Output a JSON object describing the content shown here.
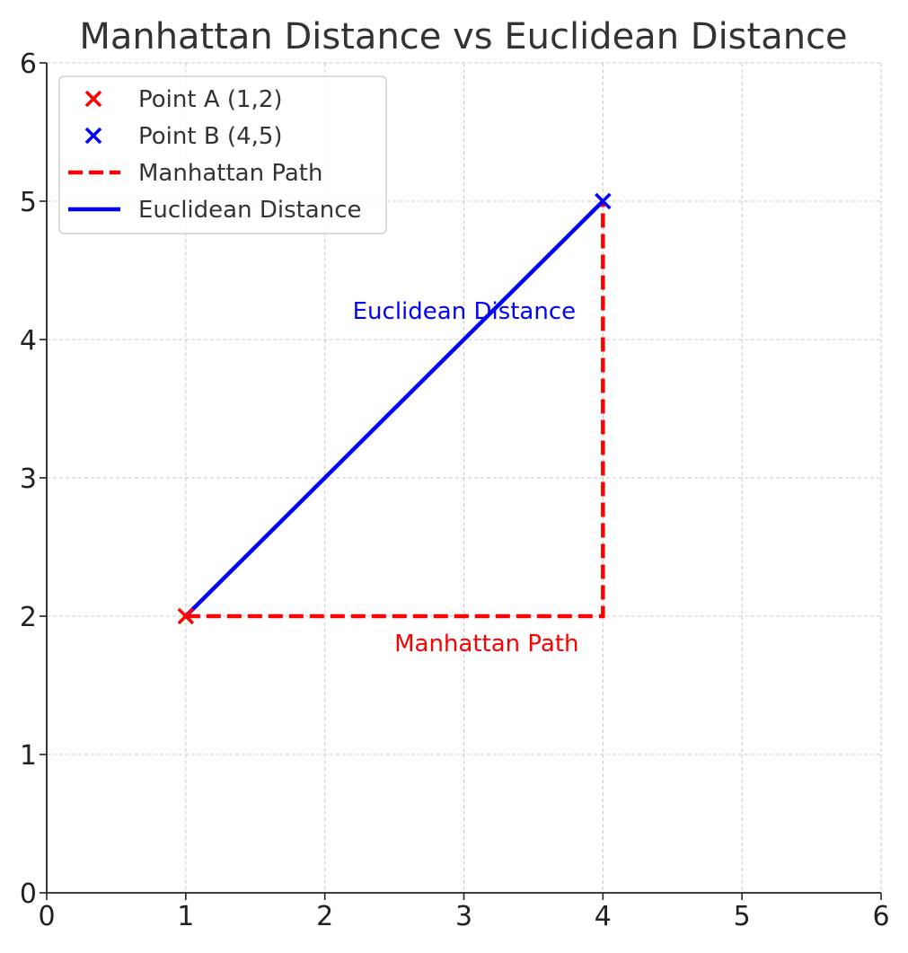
{
  "chart_data": {
    "type": "line",
    "title": "Manhattan Distance vs Euclidean Distance",
    "xlabel": "",
    "ylabel": "",
    "xlim": [
      0,
      6
    ],
    "ylim": [
      0,
      6
    ],
    "xticks": [
      "0",
      "1",
      "2",
      "3",
      "4",
      "5",
      "6"
    ],
    "yticks": [
      "0",
      "1",
      "2",
      "3",
      "4",
      "5",
      "6"
    ],
    "grid": true,
    "legend_position": "top-left",
    "points": [
      {
        "name": "Point A (1,2)",
        "x": 1,
        "y": 2,
        "color": "#ff0000",
        "marker": "x"
      },
      {
        "name": "Point B (4,5)",
        "x": 4,
        "y": 5,
        "color": "#0000ff",
        "marker": "x"
      }
    ],
    "series": [
      {
        "name": "Manhattan Path",
        "style": "dashed",
        "color": "#ff0000",
        "x": [
          1,
          4,
          4
        ],
        "y": [
          2,
          2,
          5
        ]
      },
      {
        "name": "Euclidean Distance",
        "style": "solid",
        "color": "#0000ff",
        "x": [
          1,
          4
        ],
        "y": [
          2,
          5
        ]
      }
    ],
    "annotations": [
      {
        "text": "Euclidean Distance",
        "x": 2.2,
        "y": 4.2,
        "color": "#0000ff"
      },
      {
        "text": "Manhattan Path",
        "x": 2.5,
        "y": 1.8,
        "color": "#ff0000"
      }
    ]
  }
}
